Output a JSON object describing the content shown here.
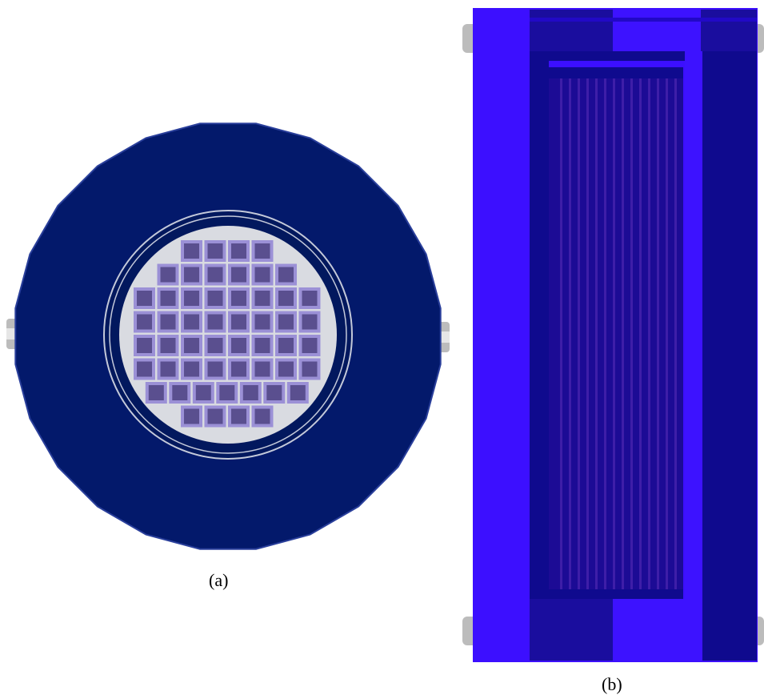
{
  "figure": {
    "panel_a": {
      "caption": "(a)",
      "assembly_rows": [
        4,
        6,
        8,
        8,
        8,
        8,
        7,
        4
      ],
      "colors": {
        "vessel": "#03196b",
        "vessel_edge": "#2a3f9b",
        "gap": "#02185e",
        "liner": "#c4c9da",
        "core_floor": "#d9dbe1",
        "assembly_outline": "#9b90d6",
        "assembly_fill": "#5a4f8f",
        "nozzle": "#bcbcbc"
      }
    },
    "panel_b": {
      "caption": "(b)",
      "colors": {
        "outer_shell": "#3c0fff",
        "dark_band": "#0f0a8e",
        "core_region": "#1c0b95",
        "rod_stripe": "#3e1ea8",
        "bright_band": "#3d12ff",
        "nozzle": "#bcbcbc"
      }
    }
  }
}
